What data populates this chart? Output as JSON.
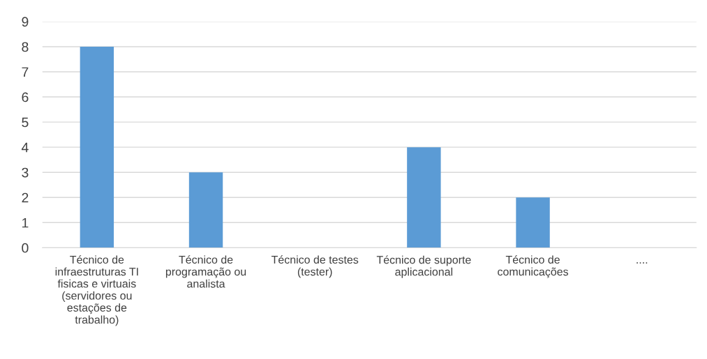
{
  "chart_data": {
    "type": "bar",
    "categories": [
      "Técnico de infraestruturas TI fisicas e virtuais (servidores ou estações de trabalho)",
      "Técnico de programação ou analista",
      "Técnico de testes (tester)",
      "Técnico de suporte aplicacional",
      "Técnico de comunicações",
      "...."
    ],
    "values": [
      8,
      3,
      0,
      4,
      2,
      0
    ],
    "color": "#5b9bd5",
    "ylim": [
      0,
      9
    ],
    "yticks": [
      0,
      1,
      2,
      3,
      4,
      5,
      6,
      7,
      8,
      9
    ],
    "grid": "y",
    "legend": false
  }
}
